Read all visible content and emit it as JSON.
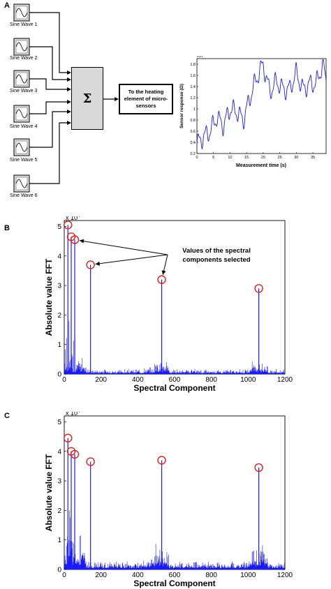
{
  "panels": {
    "a": "A",
    "b": "B",
    "c": "C"
  },
  "diagram": {
    "sine_labels": [
      "Sine Wave 1",
      "Sine Wave 2",
      "Sine Wave 3",
      "Sine Wave 4",
      "Sine Wave 5",
      "Sine Wave 6"
    ],
    "sum_symbol": "Σ",
    "output_label": "To the heating element of micro-sensors"
  },
  "sensor_plot": {
    "type": "line",
    "xlabel": "Measurement time (s)",
    "ylabel": "Sensor response (Ω)",
    "y_exponent": "x10",
    "y_exponent_power": "6",
    "x_ticks": [
      "0",
      "5",
      "10",
      "15",
      "20",
      "25",
      "30",
      "35"
    ],
    "y_ticks": [
      "0.2",
      "0.4",
      "0.6",
      "0.8",
      "1",
      "1.2",
      "1.4",
      "1.6",
      "1.8"
    ],
    "xlim": [
      0,
      39
    ],
    "ylim": [
      0.2,
      1.9
    ]
  },
  "chart_data": [
    {
      "type": "line",
      "title": "",
      "xlabel": "Measurement time (s)",
      "ylabel": "Sensor response (Ω)",
      "xlim": [
        0,
        39
      ],
      "ylim": [
        0.2,
        1.9
      ],
      "y_scale_factor": "x10^6",
      "series": [
        {
          "values_desc": "oscillating response",
          "x": [
            0,
            2,
            4,
            6,
            8,
            10,
            12,
            14,
            16,
            18,
            20,
            22,
            24,
            26,
            28,
            30,
            32,
            34,
            36,
            38,
            39
          ],
          "y": [
            0.38,
            0.5,
            0.6,
            0.85,
            0.7,
            1.0,
            0.95,
            0.8,
            1.2,
            1.55,
            1.8,
            1.3,
            1.5,
            1.35,
            1.35,
            1.65,
            1.35,
            1.45,
            1.45,
            1.8,
            1.5
          ]
        }
      ]
    },
    {
      "type": "bar",
      "title": "",
      "xlabel": "Spectral Component",
      "ylabel": "Absolute value FFT",
      "y_exponent": "x10",
      "y_exponent_power": "4",
      "xlim": [
        0,
        1200
      ],
      "ylim": [
        0,
        5.2
      ],
      "x_ticks": [
        "0",
        "200",
        "400",
        "600",
        "800",
        "1000",
        "1200"
      ],
      "y_ticks": [
        "0",
        "1",
        "2",
        "3",
        "4",
        "5"
      ],
      "annotation": "Values of the spectral components selected",
      "selected_peaks": [
        {
          "x": 20,
          "y": 5.05
        },
        {
          "x": 38,
          "y": 4.65
        },
        {
          "x": 57,
          "y": 4.55
        },
        {
          "x": 143,
          "y": 3.7
        },
        {
          "x": 530,
          "y": 3.2
        },
        {
          "x": 1058,
          "y": 2.9
        }
      ]
    },
    {
      "type": "bar",
      "title": "",
      "xlabel": "Spectral Component",
      "ylabel": "Absolute value FFT",
      "y_exponent": "x10",
      "y_exponent_power": "4",
      "xlim": [
        0,
        1200
      ],
      "ylim": [
        0,
        5.2
      ],
      "x_ticks": [
        "0",
        "200",
        "400",
        "600",
        "800",
        "1000",
        "1200"
      ],
      "y_ticks": [
        "0",
        "1",
        "2",
        "3",
        "4",
        "5"
      ],
      "selected_peaks": [
        {
          "x": 20,
          "y": 4.45
        },
        {
          "x": 38,
          "y": 4.0
        },
        {
          "x": 57,
          "y": 3.9
        },
        {
          "x": 143,
          "y": 3.65
        },
        {
          "x": 530,
          "y": 3.7
        },
        {
          "x": 1058,
          "y": 3.45
        }
      ]
    }
  ],
  "fft_b": {
    "xlabel": "Spectral Component",
    "ylabel": "Absolute value FFT",
    "annotation_line1": "Values of the spectral",
    "annotation_line2": "components selected",
    "exp_base": "x 10",
    "exp_power": "4"
  },
  "fft_c": {
    "xlabel": "Spectral Component",
    "ylabel": "Absolute value FFT",
    "exp_base": "x 10",
    "exp_power": "4"
  },
  "colors": {
    "signal": "#1a1aff",
    "marker": "#e02020",
    "box_fill": "#d9d9d9"
  }
}
